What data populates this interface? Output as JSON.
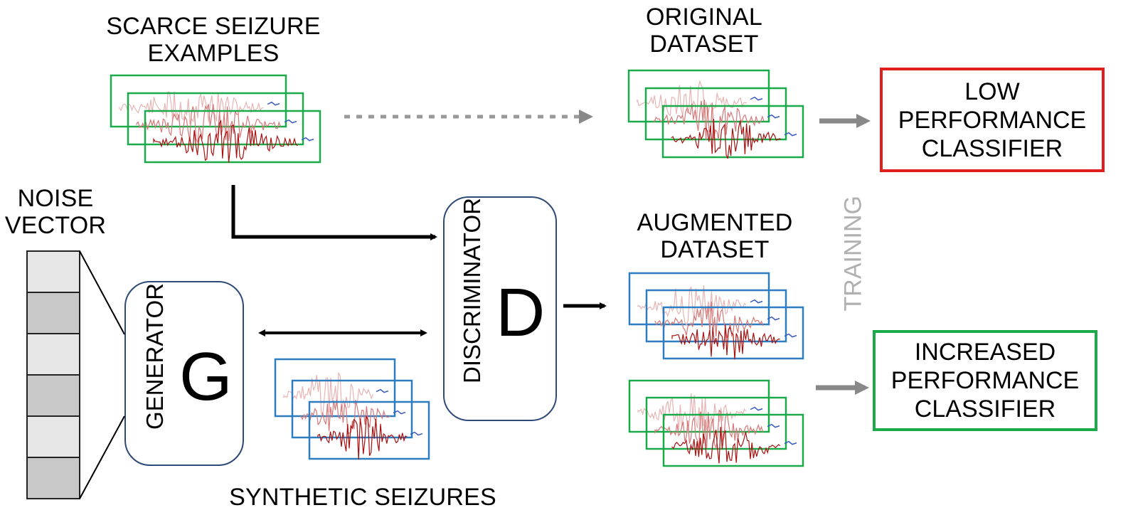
{
  "labels": {
    "scarce_line1": "SCARCE SEIZURE",
    "scarce_line2": "EXAMPLES",
    "original_line1": "ORIGINAL",
    "original_line2": "DATASET",
    "noise_line1": "NOISE",
    "noise_line2": "VECTOR",
    "augmented_line1": "AUGMENTED",
    "augmented_line2": "DATASET",
    "synthetic": "SYNTHETIC SEIZURES",
    "training": "TRAINING"
  },
  "generator": {
    "label": "GENERATOR",
    "letter": "G"
  },
  "discriminator": {
    "label": "DISCRIMINATOR",
    "letter": "D"
  },
  "classifiers": {
    "low": "LOW\nPERFORMANCE\nCLASSIFIER",
    "increased": "INCREASED\nPERFORMANCE\nCLASSIFIER"
  },
  "colors": {
    "real_frame": "#1aaa4a",
    "synthetic_frame": "#2e7dbf",
    "low_border": "#e01e1e",
    "increased_border": "#1aaa4a",
    "box_border": "#2e4a78",
    "gray_arrow": "#888888",
    "training_text": "#b0b0b0",
    "eeg_light": "#e8b4b4",
    "eeg_mid": "#d47878",
    "eeg_dark": "#a81010"
  }
}
